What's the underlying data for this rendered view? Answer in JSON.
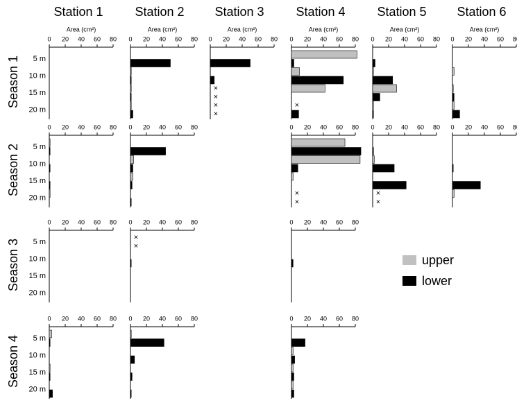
{
  "columns": [
    "Station 1",
    "Station 2",
    "Station 3",
    "Station 4",
    "Station 5",
    "Station 6"
  ],
  "rows": [
    "Season 1",
    "Season 2",
    "Season 3",
    "Season 4"
  ],
  "depths": [
    "5 m",
    "10 m",
    "15 m",
    "20 m"
  ],
  "xlabel": "Area (cm²)",
  "xlim": [
    0,
    80
  ],
  "xticks": [
    0,
    20,
    40,
    60,
    80
  ],
  "legend": {
    "series": [
      {
        "name": "upper",
        "color": "#c0c0c0"
      },
      {
        "name": "lower",
        "color": "#000000"
      }
    ]
  },
  "chart_data": [
    {
      "type": "hbar",
      "series": [
        {
          "values": [
            0,
            0,
            0,
            0
          ]
        },
        {
          "values": [
            0,
            0,
            0,
            0
          ]
        }
      ]
    },
    {
      "type": "hbar",
      "series": [
        {
          "values": [
            0,
            1,
            1,
            1
          ]
        },
        {
          "values": [
            50,
            1,
            1,
            3
          ]
        }
      ]
    },
    {
      "type": "hbar",
      "series": [
        {
          "values": [
            0,
            0,
            null,
            null
          ],
          "value_labels": [
            null,
            null,
            "×",
            "×"
          ]
        },
        {
          "values": [
            50,
            5,
            null,
            null
          ],
          "value_labels": [
            null,
            null,
            "×",
            "×"
          ]
        }
      ]
    },
    {
      "type": "hbar",
      "series": [
        {
          "values": [
            82,
            10,
            42,
            null
          ],
          "value_labels": [
            null,
            null,
            null,
            "×"
          ]
        },
        {
          "values": [
            3,
            65,
            0,
            9
          ]
        }
      ]
    },
    {
      "type": "hbar",
      "series": [
        {
          "values": [
            0,
            1,
            30,
            1
          ]
        },
        {
          "values": [
            3,
            25,
            9,
            1
          ]
        }
      ]
    },
    {
      "type": "hbar",
      "series": [
        {
          "values": [
            0,
            2,
            1,
            2
          ]
        },
        {
          "values": [
            0,
            0,
            2,
            9
          ]
        }
      ]
    },
    {
      "type": "hbar",
      "series": [
        {
          "values": [
            1,
            0,
            0,
            1
          ]
        },
        {
          "values": [
            1,
            1,
            1,
            0
          ]
        }
      ]
    },
    {
      "type": "hbar",
      "series": [
        {
          "values": [
            0,
            4,
            3,
            0
          ]
        },
        {
          "values": [
            44,
            3,
            2,
            1
          ]
        }
      ]
    },
    null,
    {
      "type": "hbar",
      "series": [
        {
          "values": [
            67,
            86,
            2,
            null
          ],
          "value_labels": [
            null,
            null,
            null,
            "×"
          ]
        },
        {
          "values": [
            87,
            8,
            0,
            null
          ],
          "value_labels": [
            null,
            null,
            null,
            "×"
          ]
        }
      ]
    },
    {
      "type": "hbar",
      "series": [
        {
          "values": [
            0,
            2,
            0,
            null
          ],
          "value_labels": [
            null,
            null,
            null,
            "×"
          ]
        },
        {
          "values": [
            1,
            27,
            42,
            null
          ],
          "value_labels": [
            null,
            null,
            null,
            "×"
          ]
        }
      ]
    },
    {
      "type": "hbar",
      "series": [
        {
          "values": [
            0,
            0,
            0,
            2
          ]
        },
        {
          "values": [
            0,
            1,
            35,
            0
          ]
        }
      ]
    },
    {
      "type": "hbar",
      "series": [
        {
          "values": [
            0,
            0,
            0,
            0
          ]
        },
        {
          "values": [
            0,
            0,
            0,
            0
          ]
        }
      ]
    },
    {
      "type": "hbar",
      "series": [
        {
          "values": [
            null,
            0,
            0,
            0
          ],
          "value_labels": [
            "×",
            null,
            null,
            null
          ]
        },
        {
          "values": [
            null,
            1,
            0,
            0
          ],
          "value_labels": [
            "×",
            null,
            null,
            null
          ]
        }
      ]
    },
    null,
    {
      "type": "hbar",
      "series": [
        {
          "values": [
            0,
            0,
            0,
            0
          ]
        },
        {
          "values": [
            0,
            2,
            0,
            0
          ]
        }
      ]
    },
    null,
    null,
    {
      "type": "hbar",
      "series": [
        {
          "values": [
            3,
            0,
            1,
            0
          ]
        },
        {
          "values": [
            1,
            0,
            1,
            4
          ]
        }
      ]
    },
    {
      "type": "hbar",
      "series": [
        {
          "values": [
            1,
            0,
            0,
            0
          ]
        },
        {
          "values": [
            42,
            5,
            2,
            1
          ]
        }
      ]
    },
    null,
    {
      "type": "hbar",
      "series": [
        {
          "values": [
            0,
            2,
            2,
            2
          ]
        },
        {
          "values": [
            17,
            4,
            3,
            3
          ]
        }
      ]
    },
    null,
    null
  ]
}
